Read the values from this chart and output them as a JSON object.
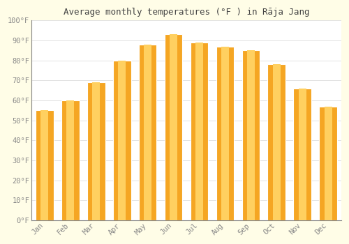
{
  "title": "Average monthly temperatures (°F ) in Rāja Jang",
  "months": [
    "Jan",
    "Feb",
    "Mar",
    "Apr",
    "May",
    "Jun",
    "Jul",
    "Aug",
    "Sep",
    "Oct",
    "Nov",
    "Dec"
  ],
  "values": [
    55,
    60,
    69,
    80,
    88,
    93,
    89,
    87,
    85,
    78,
    66,
    57
  ],
  "bar_color_edge": "#F5A623",
  "bar_color_center": "#FFD060",
  "plot_bg_color": "#FFFFFF",
  "fig_bg_color": "#FFFDE7",
  "ylim": [
    0,
    100
  ],
  "yticks": [
    0,
    10,
    20,
    30,
    40,
    50,
    60,
    70,
    80,
    90,
    100
  ],
  "ytick_labels": [
    "0°F",
    "10°F",
    "20°F",
    "30°F",
    "40°F",
    "50°F",
    "60°F",
    "70°F",
    "80°F",
    "90°F",
    "100°F"
  ],
  "title_fontsize": 9,
  "tick_fontsize": 7.5,
  "grid_color": "#dddddd",
  "font_family": "monospace",
  "tick_color": "#888888",
  "spine_color": "#888888"
}
